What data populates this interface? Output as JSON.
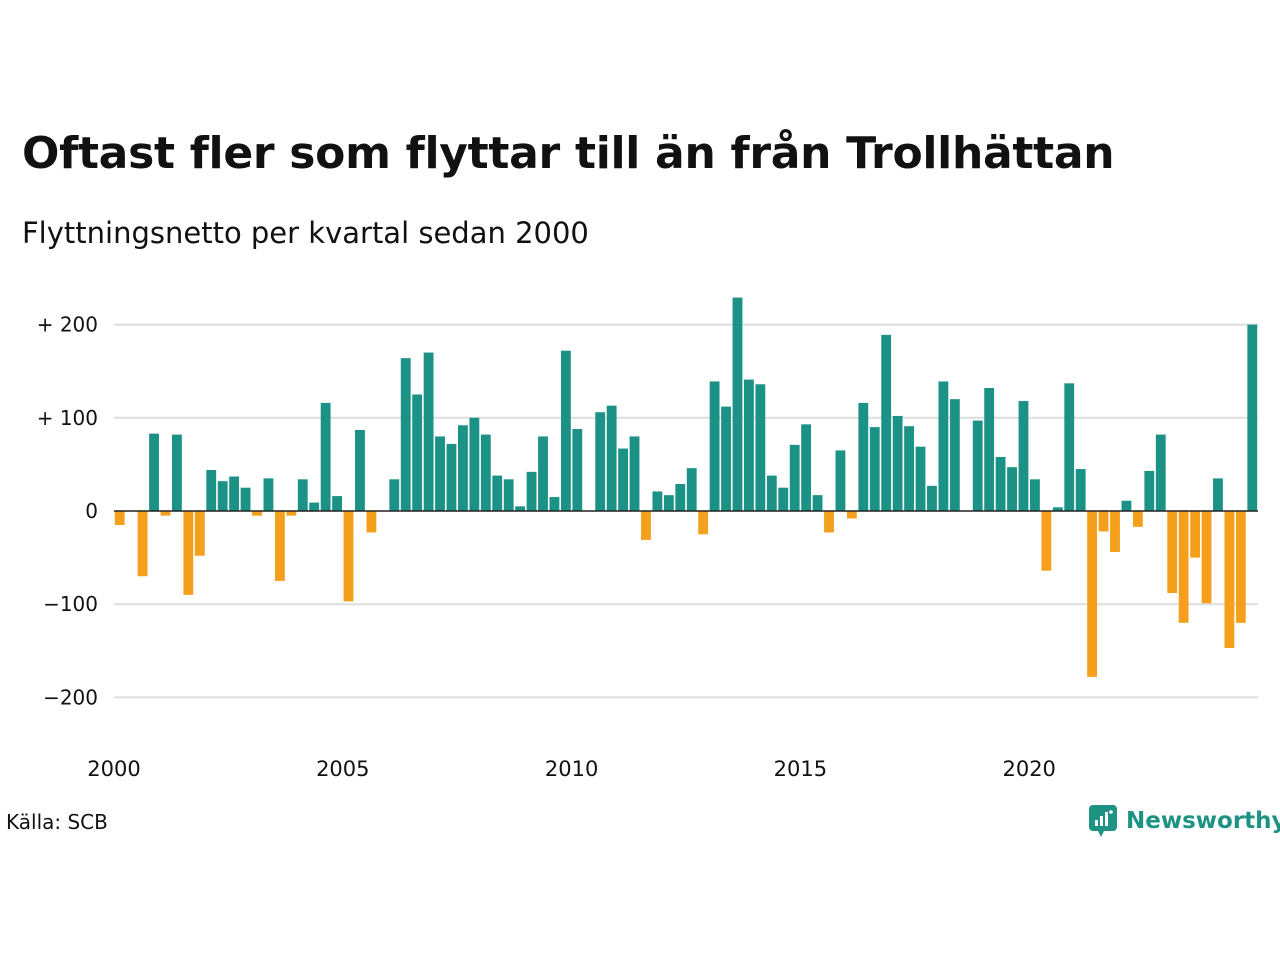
{
  "title": "Oftast fler som flyttar till än från Trollhättan",
  "subtitle": "Flyttningsnetto per kvartal sedan 2000",
  "source": "Källa: SCB",
  "brand": {
    "name": "Newsworthy"
  },
  "colors": {
    "positive": "#1b9285",
    "negative": "#f5a01c",
    "grid": "#dddddd",
    "zero": "#222222"
  },
  "chart_data": {
    "type": "bar",
    "title": "Oftast fler som flyttar till än från Trollhättan",
    "subtitle": "Flyttningsnetto per kvartal sedan 2000",
    "x_start_year": 2000,
    "periods_per_year": 4,
    "x_ticks": [
      "2000",
      "2005",
      "2010",
      "2015",
      "2020"
    ],
    "y_ticks": [
      {
        "value": 200,
        "label": "+ 200"
      },
      {
        "value": 100,
        "label": "+ 100"
      },
      {
        "value": 0,
        "label": "0"
      },
      {
        "value": -100,
        "label": "−100"
      },
      {
        "value": -200,
        "label": "−200"
      }
    ],
    "ylim": [
      -200,
      230
    ],
    "values": [
      -15,
      0,
      -70,
      83,
      -5,
      82,
      -90,
      -48,
      44,
      32,
      37,
      25,
      -5,
      35,
      -75,
      -5,
      34,
      9,
      116,
      16,
      -97,
      87,
      -23,
      0,
      34,
      164,
      125,
      170,
      80,
      72,
      92,
      100,
      82,
      38,
      34,
      5,
      42,
      80,
      15,
      172,
      88,
      0,
      106,
      113,
      67,
      80,
      -31,
      21,
      17,
      29,
      46,
      -25,
      139,
      112,
      229,
      141,
      136,
      38,
      25,
      71,
      93,
      17,
      -23,
      65,
      -8,
      116,
      90,
      189,
      102,
      91,
      69,
      27,
      139,
      120,
      0,
      97,
      132,
      58,
      47,
      118,
      34,
      -64,
      4,
      137,
      45,
      -178,
      -22,
      -44,
      11,
      -17,
      43,
      82,
      -88,
      -120,
      -50,
      -99,
      35,
      -147,
      -120,
      200
    ]
  }
}
